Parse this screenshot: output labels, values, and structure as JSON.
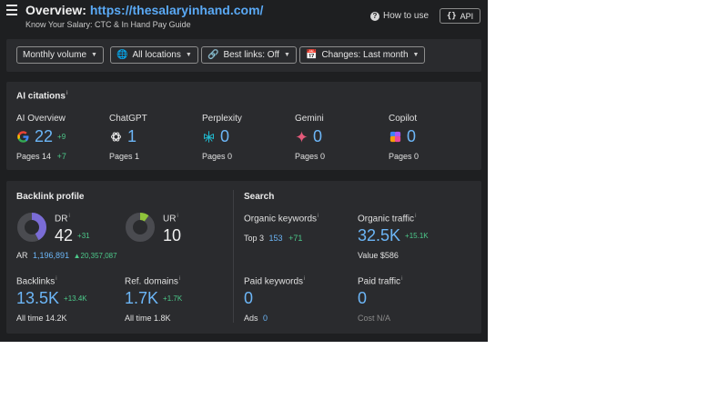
{
  "header": {
    "title_prefix": "Overview:",
    "url": "https://thesalaryinhand.com/",
    "subtitle": "Know Your Salary: CTC & In Hand Pay Guide",
    "how_to_use": "How to use",
    "api": "API",
    "api_braces": "{}"
  },
  "filters": {
    "volume": "Monthly volume",
    "locations": "All locations",
    "best_links": "Best links: Off",
    "changes": "Changes: Last month"
  },
  "ai_citations": {
    "title": "AI citations",
    "items": [
      {
        "name": "AI Overview",
        "value": "22",
        "delta": "+9",
        "pages_label": "Pages",
        "pages": "14",
        "pages_delta": "+7",
        "icon": "google-icon"
      },
      {
        "name": "ChatGPT",
        "value": "1",
        "delta": "",
        "pages_label": "Pages",
        "pages": "1",
        "pages_delta": "",
        "icon": "chatgpt-icon"
      },
      {
        "name": "Perplexity",
        "value": "0",
        "delta": "",
        "pages_label": "Pages",
        "pages": "0",
        "pages_delta": "",
        "icon": "perplexity-icon"
      },
      {
        "name": "Gemini",
        "value": "0",
        "delta": "",
        "pages_label": "Pages",
        "pages": "0",
        "pages_delta": "",
        "icon": "gemini-icon"
      },
      {
        "name": "Copilot",
        "value": "0",
        "delta": "",
        "pages_label": "Pages",
        "pages": "0",
        "pages_delta": "",
        "icon": "copilot-icon"
      }
    ]
  },
  "backlink_profile": {
    "title": "Backlink profile",
    "dr": {
      "label": "DR",
      "value": "42",
      "delta": "+31",
      "fill": 0.42,
      "color": "#7a6cd6"
    },
    "ur": {
      "label": "UR",
      "value": "10",
      "fill": 0.1,
      "color": "#8fc43a"
    },
    "ar": {
      "label": "AR",
      "value": "1,196,891",
      "delta": "20,357,087"
    },
    "backlinks": {
      "label": "Backlinks",
      "value": "13.5K",
      "delta": "+13.4K",
      "sub_label": "All time",
      "sub_value": "14.2K"
    },
    "ref_domains": {
      "label": "Ref. domains",
      "value": "1.7K",
      "delta": "+1.7K",
      "sub_label": "All time",
      "sub_value": "1.8K"
    }
  },
  "search": {
    "title": "Search",
    "organic_keywords": {
      "label": "Organic keywords",
      "top3_label": "Top 3",
      "top3_value": "153",
      "top3_delta": "+71"
    },
    "organic_traffic": {
      "label": "Organic traffic",
      "value": "32.5K",
      "delta": "+15.1K",
      "sub_label": "Value",
      "sub_value": "$586"
    },
    "paid_keywords": {
      "label": "Paid keywords",
      "value": "0",
      "sub_label": "Ads",
      "sub_value": "0"
    },
    "paid_traffic": {
      "label": "Paid traffic",
      "value": "0",
      "sub_label": "Cost",
      "sub_value": "N/A"
    }
  },
  "colors": {
    "accent": "#6cb6f7",
    "positive": "#4cc98a",
    "panel": "#2a2b2e",
    "background": "#1e1f21"
  }
}
